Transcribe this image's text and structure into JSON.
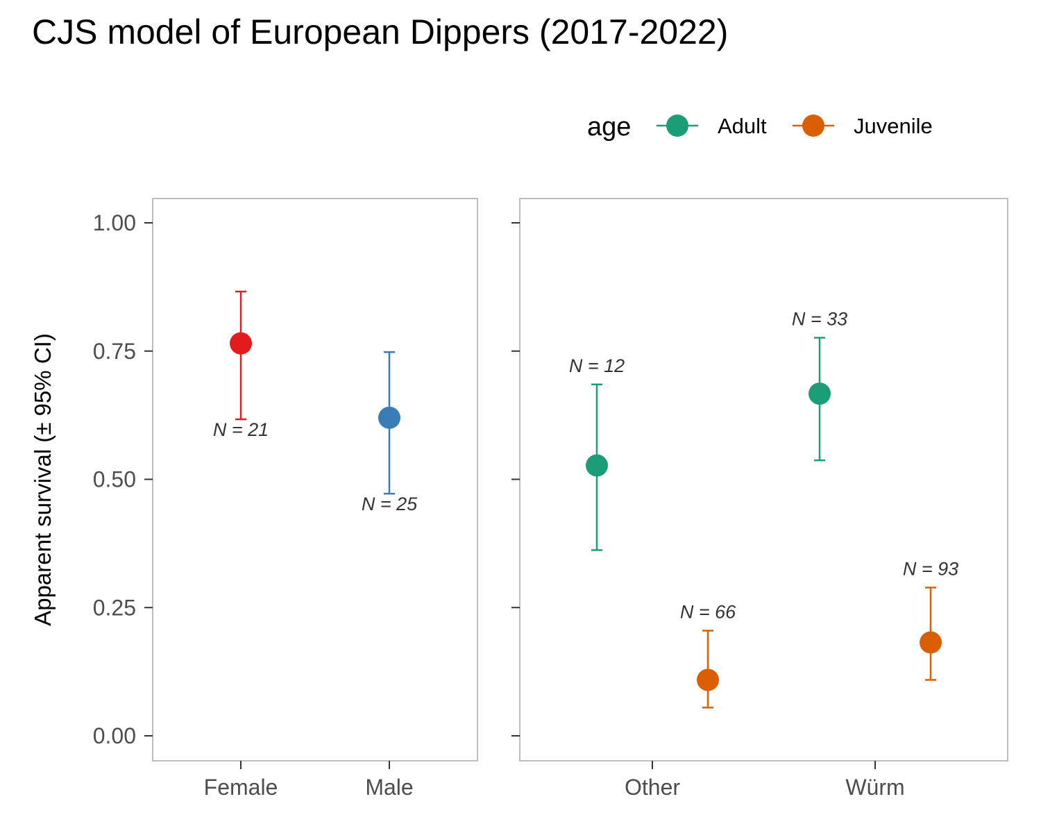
{
  "title": "CJS model of European Dippers (2017-2022)",
  "chart_data": {
    "type": "scatter",
    "ylabel": "Apparent survival (± 95% CI)",
    "ylim": [
      0,
      1
    ],
    "yticks": [
      "0.00",
      "0.25",
      "0.50",
      "0.75",
      "1.00"
    ],
    "legend": {
      "title": "age",
      "placement": "top-right",
      "items": [
        {
          "label": "Adult",
          "color": "#1b9e77"
        },
        {
          "label": "Juvenile",
          "color": "#d95f02"
        }
      ]
    },
    "panels": [
      {
        "categories": [
          "Female",
          "Male"
        ],
        "points": [
          {
            "category": "Female",
            "estimate": 0.765,
            "lower": 0.617,
            "upper": 0.866,
            "label": "N = 21",
            "label_position": "below",
            "color": "#e41a1c"
          },
          {
            "category": "Male",
            "estimate": 0.62,
            "lower": 0.472,
            "upper": 0.748,
            "label": "N = 25",
            "label_position": "below",
            "color": "#377eb8"
          }
        ]
      },
      {
        "categories": [
          "Other",
          "Würm"
        ],
        "points": [
          {
            "category": "Other",
            "age": "Adult",
            "estimate": 0.527,
            "lower": 0.362,
            "upper": 0.685,
            "label": "N = 12",
            "label_position": "above",
            "color": "#1b9e77"
          },
          {
            "category": "Other",
            "age": "Juvenile",
            "estimate": 0.109,
            "lower": 0.055,
            "upper": 0.205,
            "label": "N = 66",
            "label_position": "above",
            "color": "#d95f02"
          },
          {
            "category": "Würm",
            "age": "Adult",
            "estimate": 0.667,
            "lower": 0.537,
            "upper": 0.776,
            "label": "N = 33",
            "label_position": "above",
            "color": "#1b9e77"
          },
          {
            "category": "Würm",
            "age": "Juvenile",
            "estimate": 0.182,
            "lower": 0.109,
            "upper": 0.289,
            "label": "N = 93",
            "label_position": "above",
            "color": "#d95f02"
          }
        ]
      }
    ]
  }
}
